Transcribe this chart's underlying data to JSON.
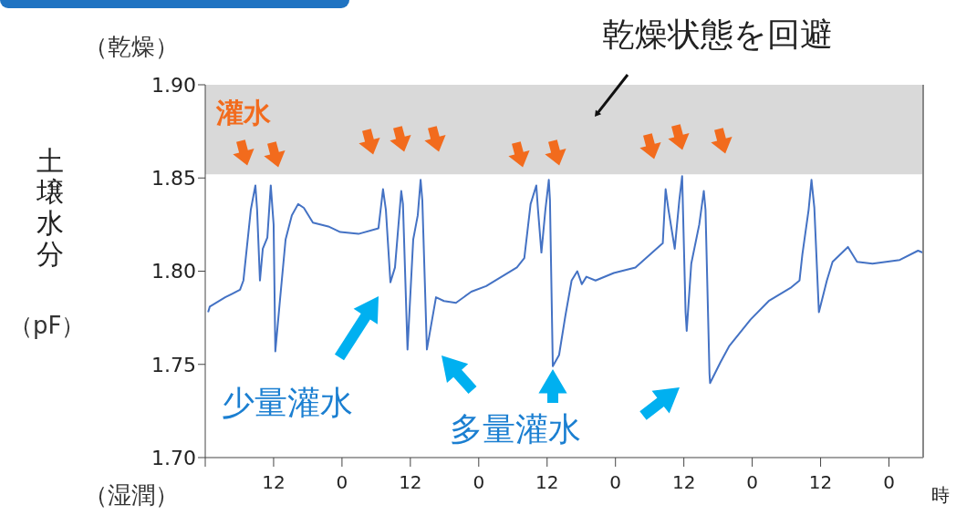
{
  "chart_data": {
    "type": "line",
    "ylabel": "土壌水分",
    "xlabel": "時",
    "annotations": [
      "（乾燥）",
      "（湿潤）",
      "（pF）",
      "灌水",
      "少量灌水",
      "多量灌水"
    ],
    "xlim": [
      "--01-01T00:00",
      "--01-06T06:00"
    ],
    "xticks": [
      {
        "value": "--01-01T00:00",
        "label": null
      },
      {
        "value": "--01-01T12:00",
        "label": "12"
      },
      {
        "value": "--01-02T00:00",
        "label": "0"
      },
      {
        "value": "--01-02T12:00",
        "label": "12"
      },
      {
        "value": "--01-03T00:00",
        "label": "0"
      },
      {
        "value": "--01-03T12:00",
        "label": "12"
      },
      {
        "value": "--01-04T00:00",
        "label": "0"
      },
      {
        "value": "--01-04T12:00",
        "label": "12"
      },
      {
        "value": "--01-05T00:00",
        "label": "0"
      },
      {
        "value": "--01-05T12:00",
        "label": "12"
      },
      {
        "value": "--01-06T00:00",
        "label": "0"
      }
    ],
    "ylim": [
      1.7,
      1.9
    ],
    "yticks": [
      {
        "value": 1.7,
        "label": "1.70"
      },
      {
        "value": 1.75,
        "label": "1.75"
      },
      {
        "value": 1.8,
        "label": "1.80"
      },
      {
        "value": 1.85,
        "label": "1.85"
      },
      {
        "value": 1.9,
        "label": "1.90"
      }
    ],
    "grid": false,
    "bands": [
      {
        "axis": "y",
        "from": 1.852,
        "to": 1.9,
        "label": "乾燥状態を回避",
        "color": "#d9d9d9"
      }
    ],
    "series": [
      {
        "color": "#4472c4",
        "x": [
          "--01-01T00:30",
          "--01-01T00:48",
          "--01-01T03:30",
          "--01-01T06:06",
          "--01-01T06:42",
          "--01-01T08:00",
          "--01-01T08:48",
          "--01-01T09:06",
          "--01-01T09:36",
          "--01-01T10:06",
          "--01-01T10:54",
          "--01-01T11:30",
          "--01-01T12:00",
          "--01-01T12:18",
          "--01-01T13:06",
          "--01-01T14:06",
          "--01-01T15:12",
          "--01-01T16:18",
          "--01-01T17:18",
          "--01-01T18:54",
          "--01-01T21:36",
          "--01-01T23:42",
          "--01-02T02:54",
          "--01-02T06:24",
          "--01-02T07:12",
          "--01-02T07:42",
          "--01-02T08:30",
          "--01-02T09:18",
          "--01-02T10:24",
          "--01-02T10:42",
          "--01-02T11:30",
          "--01-02T12:30",
          "--01-02T13:18",
          "--01-02T13:48",
          "--01-02T14:06",
          "--01-02T14:54",
          "--01-02T16:30",
          "--01-02T17:54",
          "--01-02T20:00",
          "--01-02T22:42",
          "--01-03T01:18",
          "--01-03T06:42",
          "--01-03T08:00",
          "--01-03T09:06",
          "--01-03T10:06",
          "--01-03T10:24",
          "--01-03T11:00",
          "--01-03T11:42",
          "--01-03T12:18",
          "--01-03T12:30",
          "--01-03T13:00",
          "--01-03T14:06",
          "--01-03T15:12",
          "--01-03T16:18",
          "--01-03T17:18",
          "--01-03T18:06",
          "--01-03T18:54",
          "--01-03T20:30",
          "--01-03T23:42",
          "--01-04T03:30",
          "--01-04T06:06",
          "--01-04T08:18",
          "--01-04T08:48",
          "--01-04T09:18",
          "--01-04T10:24",
          "--01-04T11:12",
          "--01-04T11:42",
          "--01-04T12:18",
          "--01-04T12:30",
          "--01-04T13:18",
          "--01-04T14:42",
          "--01-04T15:30",
          "--01-04T15:48",
          "--01-04T16:30",
          "--01-04T16:36",
          "--01-04T18:24",
          "--01-04T20:00",
          "--01-04T23:42",
          "--01-05T02:54",
          "--01-05T06:42",
          "--01-05T08:18",
          "--01-05T08:48",
          "--01-05T09:54",
          "--01-05T10:24",
          "--01-05T10:54",
          "--01-05T11:42",
          "--01-05T13:06",
          "--01-05T14:06",
          "--01-05T16:48",
          "--01-05T18:24",
          "--01-05T21:06",
          "--01-06T01:54",
          "--01-06T05:06",
          "--01-06T05:54"
        ],
        "values": [
          1.778,
          1.781,
          1.786,
          1.79,
          1.795,
          1.833,
          1.846,
          1.833,
          1.795,
          1.812,
          1.818,
          1.846,
          1.825,
          1.757,
          1.784,
          1.817,
          1.83,
          1.836,
          1.834,
          1.826,
          1.824,
          1.821,
          1.82,
          1.823,
          1.844,
          1.833,
          1.794,
          1.802,
          1.843,
          1.836,
          1.758,
          1.817,
          1.83,
          1.849,
          1.838,
          1.758,
          1.786,
          1.784,
          1.783,
          1.789,
          1.792,
          1.802,
          1.807,
          1.836,
          1.846,
          1.833,
          1.81,
          1.833,
          1.849,
          1.838,
          1.749,
          1.755,
          1.776,
          1.795,
          1.8,
          1.793,
          1.797,
          1.795,
          1.799,
          1.802,
          1.809,
          1.815,
          1.844,
          1.833,
          1.812,
          1.838,
          1.851,
          1.778,
          1.768,
          1.804,
          1.825,
          1.843,
          1.833,
          1.745,
          1.74,
          1.751,
          1.76,
          1.774,
          1.784,
          1.791,
          1.795,
          1.809,
          1.833,
          1.849,
          1.834,
          1.778,
          1.795,
          1.805,
          1.813,
          1.805,
          1.804,
          1.806,
          1.811,
          1.81
        ]
      }
    ]
  }
}
